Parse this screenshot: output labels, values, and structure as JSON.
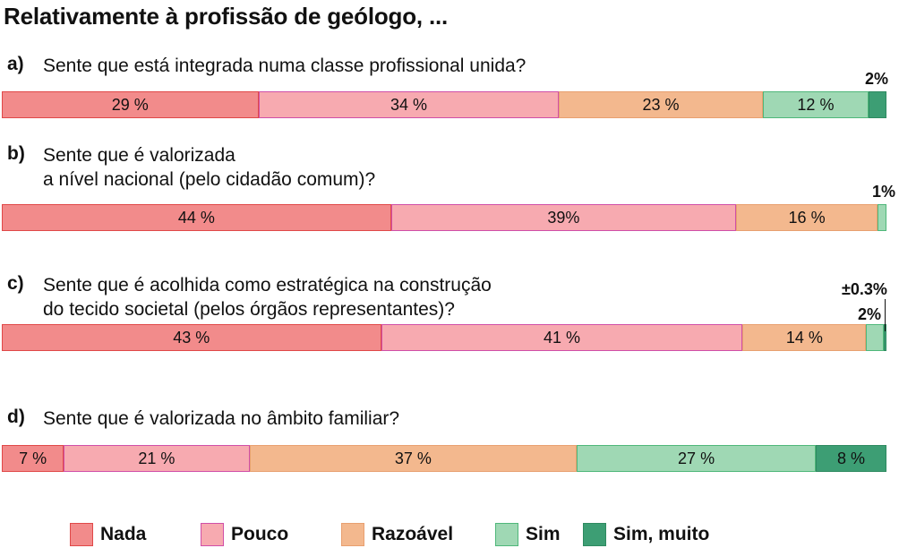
{
  "title": "Relativamente à profissão de geólogo, ...",
  "colors": {
    "Nada": {
      "fill": "#f28b8b",
      "stroke": "#e04848"
    },
    "Pouco": {
      "fill": "#f7aab0",
      "stroke": "#d04fa8"
    },
    "Razoável": {
      "fill": "#f3b88e",
      "stroke": "#e8a070"
    },
    "Sim": {
      "fill": "#9fd8b4",
      "stroke": "#4fb77a"
    },
    "Sim, muito": {
      "fill": "#3d9e74",
      "stroke": "#2e8a60"
    }
  },
  "legend": [
    "Nada",
    "Pouco",
    "Razoável",
    "Sim",
    "Sim, muito"
  ],
  "questions": [
    {
      "letter": "a)",
      "lines": [
        "Sente que está integrada numa classe profissional unida?"
      ]
    },
    {
      "letter": "b)",
      "lines": [
        "Sente que é valorizada",
        "a nível nacional (pelo cidadão comum)?"
      ]
    },
    {
      "letter": "c)",
      "lines": [
        "Sente que é acolhida como estratégica na construção",
        "do tecido societal (pelos órgãos representantes)?"
      ]
    },
    {
      "letter": "d)",
      "lines": [
        "Sente que é valorizada no âmbito familiar?"
      ]
    }
  ],
  "chart_data": {
    "type": "bar",
    "orientation": "horizontal-stacked-100",
    "categories": [
      "a)",
      "b)",
      "c)",
      "d)"
    ],
    "series": [
      {
        "name": "Nada",
        "values": [
          29,
          44,
          43,
          7
        ],
        "labels": [
          "29 %",
          "44 %",
          "43 %",
          "7 %"
        ]
      },
      {
        "name": "Pouco",
        "values": [
          34,
          39,
          41,
          21
        ],
        "labels": [
          "34 %",
          "39%",
          "41 %",
          "21 %"
        ]
      },
      {
        "name": "Razoável",
        "values": [
          23,
          16,
          14,
          37
        ],
        "labels": [
          "23 %",
          "16 %",
          "14 %",
          "37 %"
        ]
      },
      {
        "name": "Sim",
        "values": [
          12,
          1,
          2,
          27
        ],
        "labels": [
          "12 %",
          "1%",
          "2%",
          "27 %"
        ]
      },
      {
        "name": "Sim, muito",
        "values": [
          2,
          0,
          0.3,
          8
        ],
        "labels": [
          "2%",
          "",
          "±0.3%",
          "8 %"
        ]
      }
    ]
  }
}
